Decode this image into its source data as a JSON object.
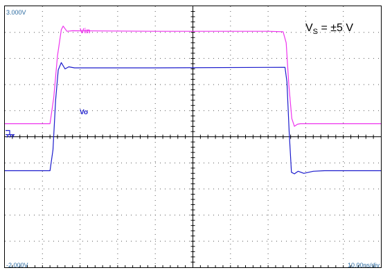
{
  "chart_data": {
    "type": "line",
    "title": "",
    "ymax_label": "3.000V",
    "ymin_label": "-2.000V",
    "timebase_label": "10.00ns/div",
    "supply_label": {
      "main": "V",
      "sub": "S",
      "rest": " = ±5 V"
    },
    "xlim": [
      0,
      100
    ],
    "ylim": [
      -2,
      3
    ],
    "x_unit": "ns",
    "y_unit": "V",
    "grid": true,
    "ground_marker_level": 0.5,
    "series": [
      {
        "name": "Vin",
        "color": "#ee33ee",
        "x": [
          0,
          12,
          13.0,
          14.0,
          15.0,
          15.5,
          16.5,
          18.0,
          40,
          70,
          74,
          74.8,
          75.5,
          76.3,
          77.0,
          77.8,
          78.6,
          80.0,
          100
        ],
        "y": [
          0.75,
          0.75,
          1.25,
          2.05,
          2.55,
          2.62,
          2.52,
          2.53,
          2.52,
          2.52,
          2.51,
          2.3,
          1.5,
          0.85,
          0.7,
          0.74,
          0.75,
          0.75,
          0.75
        ]
      },
      {
        "name": "Vo",
        "color": "#1a1acc",
        "x": [
          0,
          12,
          12.8,
          13.5,
          14.2,
          15.0,
          16.0,
          17.0,
          18.5,
          40,
          74.5,
          75.0,
          75.6,
          76.2,
          77.0,
          78.0,
          79.5,
          82.0,
          85.0,
          100
        ],
        "y": [
          -0.15,
          -0.15,
          0.25,
          1.2,
          1.78,
          1.92,
          1.8,
          1.84,
          1.82,
          1.82,
          1.83,
          1.55,
          0.6,
          -0.18,
          -0.21,
          -0.16,
          -0.2,
          -0.16,
          -0.15,
          -0.15
        ]
      }
    ]
  }
}
